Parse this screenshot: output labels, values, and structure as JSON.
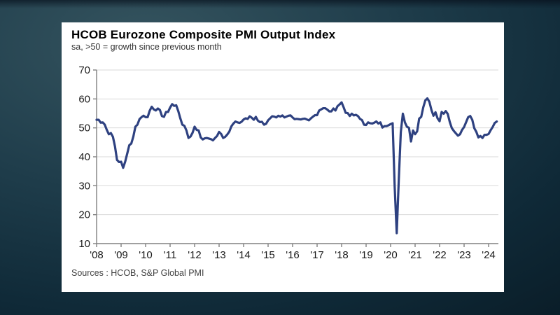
{
  "page": {
    "background_accent": "#35545f",
    "background_dark": "#0a1d28"
  },
  "chart_data": {
    "type": "line",
    "title": "HCOB Eurozone Composite PMI Output Index",
    "subtitle": "sa, >50 = growth since previous month",
    "source": "Sources : HCOB, S&P Global PMI",
    "ylim": [
      10,
      70
    ],
    "y_ticks": [
      10,
      20,
      30,
      40,
      50,
      60,
      70
    ],
    "x_tick_labels": [
      "'08",
      "'09",
      "'10",
      "'11",
      "'12",
      "'13",
      "'14",
      "'15",
      "'16",
      "'17",
      "'18",
      "'19",
      "'20",
      "'21",
      "'22",
      "'23",
      "'24"
    ],
    "x_start": "2008-01",
    "x_end": "2024-05",
    "grid": true,
    "legend": "none",
    "line_color": "#2e4180",
    "grid_color": "#d9d9d9",
    "axis_color": "#808080",
    "series": [
      {
        "name": "Eurozone Composite PMI Output Index",
        "frequency": "monthly",
        "values": [
          52.8,
          52.8,
          51.8,
          51.9,
          51.1,
          49.3,
          47.8,
          48.2,
          46.9,
          43.6,
          38.9,
          38.2,
          38.3,
          36.2,
          38.3,
          41.1,
          44.0,
          44.6,
          47.0,
          50.4,
          51.1,
          53.0,
          53.7,
          54.2,
          53.7,
          53.7,
          55.9,
          57.3,
          56.4,
          56.0,
          56.7,
          56.2,
          54.1,
          53.8,
          55.5,
          55.5,
          57.0,
          58.2,
          57.6,
          57.8,
          55.8,
          53.3,
          51.1,
          50.7,
          49.1,
          46.5,
          47.0,
          48.3,
          50.4,
          49.3,
          49.1,
          46.7,
          46.0,
          46.4,
          46.5,
          46.3,
          46.1,
          45.7,
          46.5,
          47.2,
          48.6,
          47.9,
          46.5,
          46.9,
          47.7,
          48.7,
          50.5,
          51.5,
          52.2,
          51.9,
          51.7,
          52.1,
          52.9,
          53.3,
          53.1,
          54.0,
          53.5,
          52.8,
          53.8,
          52.5,
          52.0,
          52.1,
          51.1,
          51.4,
          52.6,
          53.3,
          54.0,
          53.9,
          53.6,
          54.2,
          53.9,
          54.3,
          53.6,
          53.9,
          54.2,
          54.3,
          53.6,
          53.0,
          53.1,
          53.0,
          52.9,
          53.1,
          53.2,
          52.9,
          52.6,
          53.3,
          53.9,
          54.4,
          54.4,
          56.0,
          56.4,
          56.8,
          56.8,
          56.3,
          55.7,
          55.7,
          56.7,
          56.0,
          57.5,
          58.1,
          58.8,
          57.1,
          55.2,
          55.1,
          54.1,
          54.9,
          54.3,
          54.5,
          54.1,
          53.1,
          52.7,
          51.1,
          51.0,
          51.9,
          51.6,
          51.5,
          51.8,
          52.2,
          51.5,
          51.9,
          50.1,
          50.6,
          50.6,
          50.9,
          51.3,
          51.6,
          29.7,
          13.6,
          31.9,
          48.5,
          54.9,
          51.9,
          50.4,
          50.0,
          45.3,
          49.1,
          47.8,
          48.8,
          53.2,
          53.8,
          57.1,
          59.5,
          60.2,
          59.0,
          56.2,
          54.2,
          55.4,
          53.3,
          52.3,
          55.5,
          54.9,
          55.8,
          54.8,
          52.0,
          49.9,
          48.9,
          48.1,
          47.3,
          47.8,
          49.3,
          50.3,
          52.0,
          53.7,
          54.1,
          52.8,
          49.9,
          48.6,
          46.7,
          47.2,
          46.5,
          47.6,
          47.6,
          47.9,
          49.2,
          50.3,
          51.7,
          52.2
        ]
      }
    ]
  }
}
